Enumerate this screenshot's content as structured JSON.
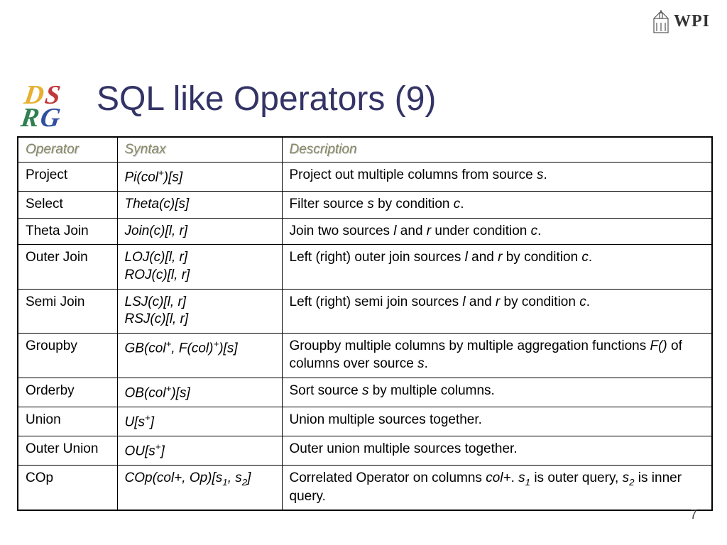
{
  "logo_dsrg": {
    "d": "D",
    "s": "S",
    "r": "R",
    "g": "G"
  },
  "wpi_label": "WPI",
  "title": "SQL like Operators (9)",
  "page_number": "7",
  "table": {
    "headers": [
      "Operator",
      "Syntax",
      "Description"
    ],
    "rows": [
      {
        "op": "Project",
        "syntax_html": "Pi(col<sup>+</sup>)[s]",
        "desc_html": "Project out multiple columns from source <em>s</em>."
      },
      {
        "op": "Select",
        "syntax_html": "Theta(c)[s]",
        "desc_html": "Filter source <em>s</em> by condition <em>c</em>."
      },
      {
        "op": "Theta Join",
        "syntax_html": "Join(c)[l, r]",
        "desc_html": "Join two sources <em>l</em> and <em>r</em> under condition <em>c</em>."
      },
      {
        "op": "Outer Join",
        "syntax_html": "LOJ(c)[l, r]<br>ROJ(c)[l, r]",
        "desc_html": "Left (right) outer join sources <em>l</em> and <em>r</em> by condition <em>c</em>."
      },
      {
        "op": "Semi Join",
        "syntax_html": "LSJ(c)[l, r]<br>RSJ(c)[l, r]",
        "desc_html": "Left (right) semi join sources <em>l</em> and <em>r</em> by condition <em>c</em>."
      },
      {
        "op": "Groupby",
        "syntax_html": "GB(col<sup>+</sup>, F(col)<sup>+</sup>)[s]",
        "desc_html": "Groupby multiple columns by multiple aggregation functions <em>F()</em> of columns over source <em>s</em>."
      },
      {
        "op": "Orderby",
        "syntax_html": "OB(col<sup>+</sup>)[s]",
        "desc_html": "Sort source <em>s</em> by multiple columns."
      },
      {
        "op": "Union",
        "syntax_html": "U[s<sup>+</sup>]",
        "desc_html": "Union multiple sources together."
      },
      {
        "op": "Outer Union",
        "syntax_html": "OU[s<sup>+</sup>]",
        "desc_html": "Outer union multiple sources together."
      },
      {
        "op": "COp",
        "syntax_html": "COp(col+, Op)[s<sub>1</sub>, s<sub>2</sub>]",
        "desc_html": "Correlated Operator on columns <em>col+</em>. <em>s<sub>1</sub></em> is outer query, <em>s<sub>2</sub></em> is inner query."
      }
    ]
  }
}
